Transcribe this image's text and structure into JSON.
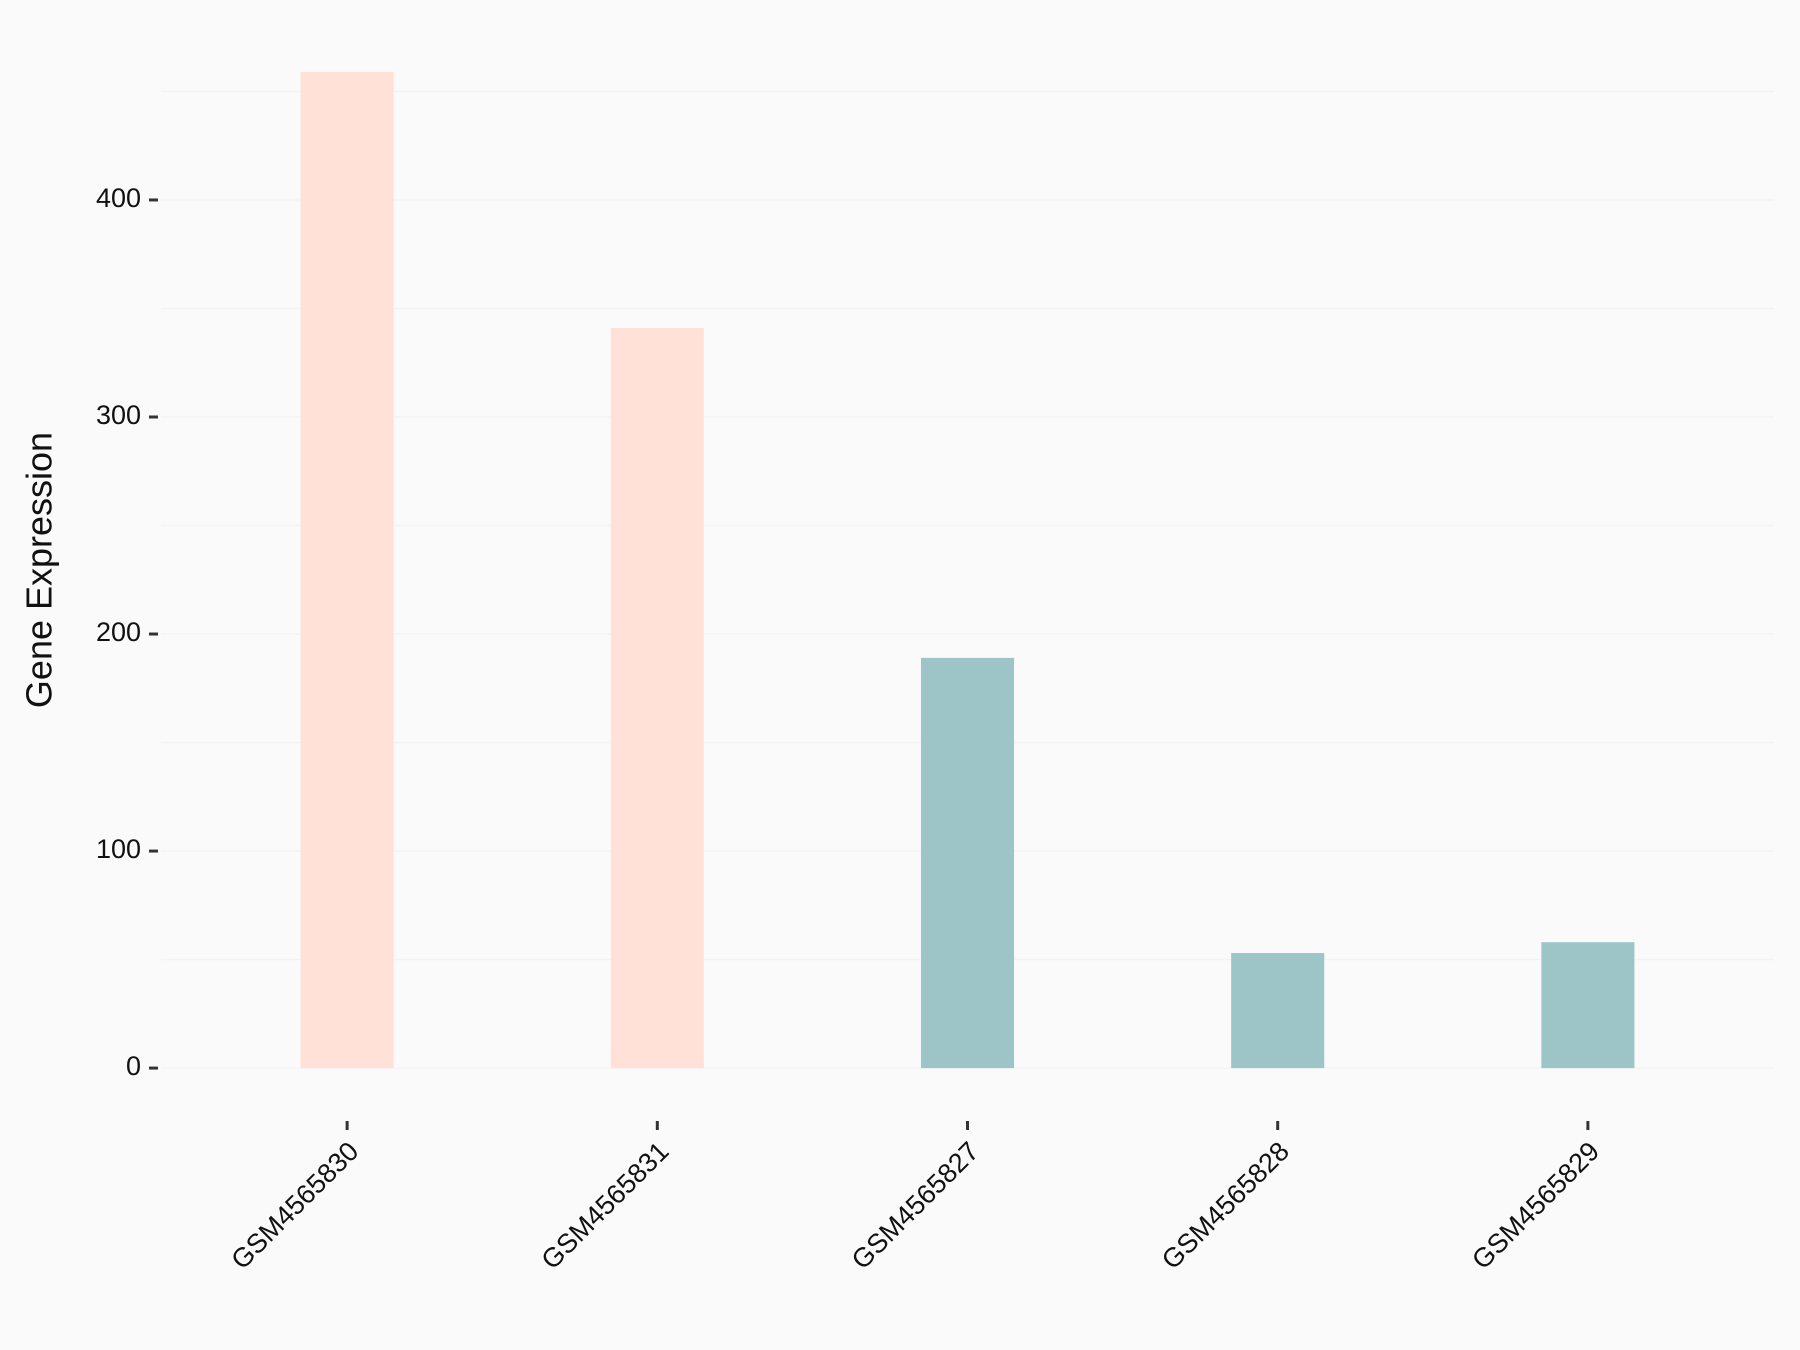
{
  "chart_data": {
    "type": "bar",
    "y_label": "Gene Expression",
    "categories": [
      "GSM4565830",
      "GSM4565831",
      "GSM4565827",
      "GSM4565828",
      "GSM4565829"
    ],
    "values": [
      459,
      341,
      189,
      53,
      58
    ],
    "colors": [
      "#FFE1D7",
      "#FFE1D7",
      "#9DC4C7",
      "#9DC4C7",
      "#9DC4C7"
    ],
    "ylim": [
      -23,
      482
    ],
    "yticks": [
      0,
      100,
      200,
      300,
      400
    ],
    "y_minor_ticks": [
      50,
      150,
      250,
      350,
      450
    ],
    "grid": true
  }
}
